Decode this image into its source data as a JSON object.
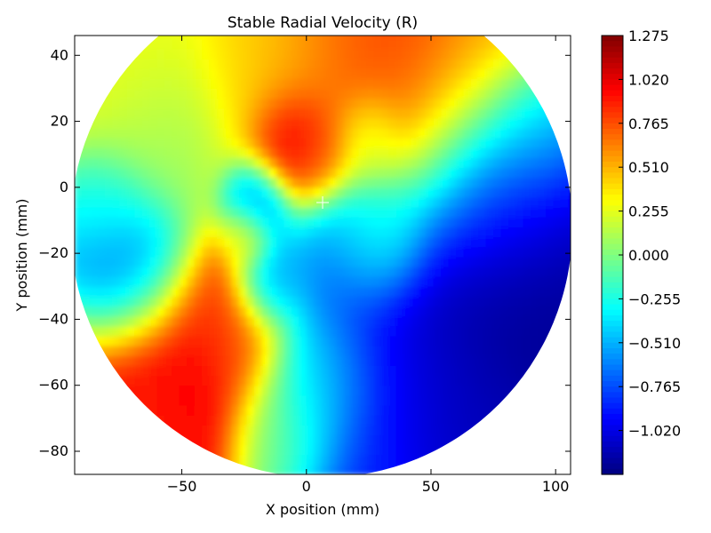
{
  "chart_data": {
    "type": "heatmap",
    "title": "Stable Radial Velocity (R)",
    "xlabel": "X position (mm)",
    "ylabel": "Y position (mm)",
    "xlim": [
      -93,
      106
    ],
    "ylim": [
      -87,
      46
    ],
    "xticks": [
      -50,
      0,
      50,
      100
    ],
    "xtick_labels": [
      "−50",
      "0",
      "50",
      "100"
    ],
    "yticks": [
      40,
      20,
      0,
      -20,
      -40,
      -60,
      -80
    ],
    "ytick_labels": [
      "40",
      "20",
      "0",
      "−20",
      "−40",
      "−60",
      "−80"
    ],
    "colormap": "jet",
    "vmin": -1.275,
    "vmax": 1.275,
    "colorbar_ticks": [
      1.275,
      1.02,
      0.765,
      0.51,
      0.255,
      0.0,
      -0.255,
      -0.51,
      -0.765,
      -1.02
    ],
    "colorbar_tick_labels": [
      "1.275",
      "1.020",
      "0.765",
      "0.510",
      "0.255",
      "0.000",
      "−0.255",
      "−0.510",
      "−0.765",
      "−1.020"
    ],
    "grid": false,
    "field_regions": [
      {
        "cx": -50,
        "cy": -55,
        "r": 22,
        "value": 1.1
      },
      {
        "cx": -60,
        "cy": -70,
        "r": 12,
        "value": 0.8
      },
      {
        "cx": -30,
        "cy": -45,
        "r": 12,
        "value": 0.7
      },
      {
        "cx": -70,
        "cy": -25,
        "r": 14,
        "value": -0.85
      },
      {
        "cx": -80,
        "cy": -5,
        "r": 10,
        "value": -0.3
      },
      {
        "cx": -5,
        "cy": 15,
        "r": 9,
        "value": 1.2
      },
      {
        "cx": 5,
        "cy": 10,
        "r": 8,
        "value": 0.8
      },
      {
        "cx": 10,
        "cy": 38,
        "r": 22,
        "value": 0.75
      },
      {
        "cx": 50,
        "cy": 30,
        "r": 26,
        "value": 0.85
      },
      {
        "cx": 75,
        "cy": 38,
        "r": 16,
        "value": 0.5
      },
      {
        "cx": -15,
        "cy": 40,
        "r": 18,
        "value": 0.35
      },
      {
        "cx": -70,
        "cy": 35,
        "r": 18,
        "value": 0.3
      },
      {
        "cx": -60,
        "cy": 15,
        "r": 16,
        "value": 0.05
      },
      {
        "cx": -20,
        "cy": -5,
        "r": 8,
        "value": -0.7
      },
      {
        "cx": -15,
        "cy": -30,
        "r": 8,
        "value": -0.7
      },
      {
        "cx": 20,
        "cy": -18,
        "r": 14,
        "value": -0.6
      },
      {
        "cx": 30,
        "cy": -15,
        "r": 10,
        "value": -0.1
      },
      {
        "cx": 25,
        "cy": 15,
        "r": 8,
        "value": 0.1
      },
      {
        "cx": 70,
        "cy": -35,
        "r": 32,
        "value": -1.25
      },
      {
        "cx": 80,
        "cy": 5,
        "r": 18,
        "value": -1.0
      },
      {
        "cx": 30,
        "cy": -70,
        "r": 24,
        "value": -0.85
      },
      {
        "cx": 60,
        "cy": -75,
        "r": 16,
        "value": -1.15
      },
      {
        "cx": 5,
        "cy": -60,
        "r": 14,
        "value": -0.3
      },
      {
        "cx": -10,
        "cy": -75,
        "r": 12,
        "value": 0.0
      },
      {
        "cx": 90,
        "cy": 20,
        "r": 12,
        "value": -0.5
      },
      {
        "cx": -25,
        "cy": -15,
        "r": 6,
        "value": 0.4
      }
    ]
  }
}
